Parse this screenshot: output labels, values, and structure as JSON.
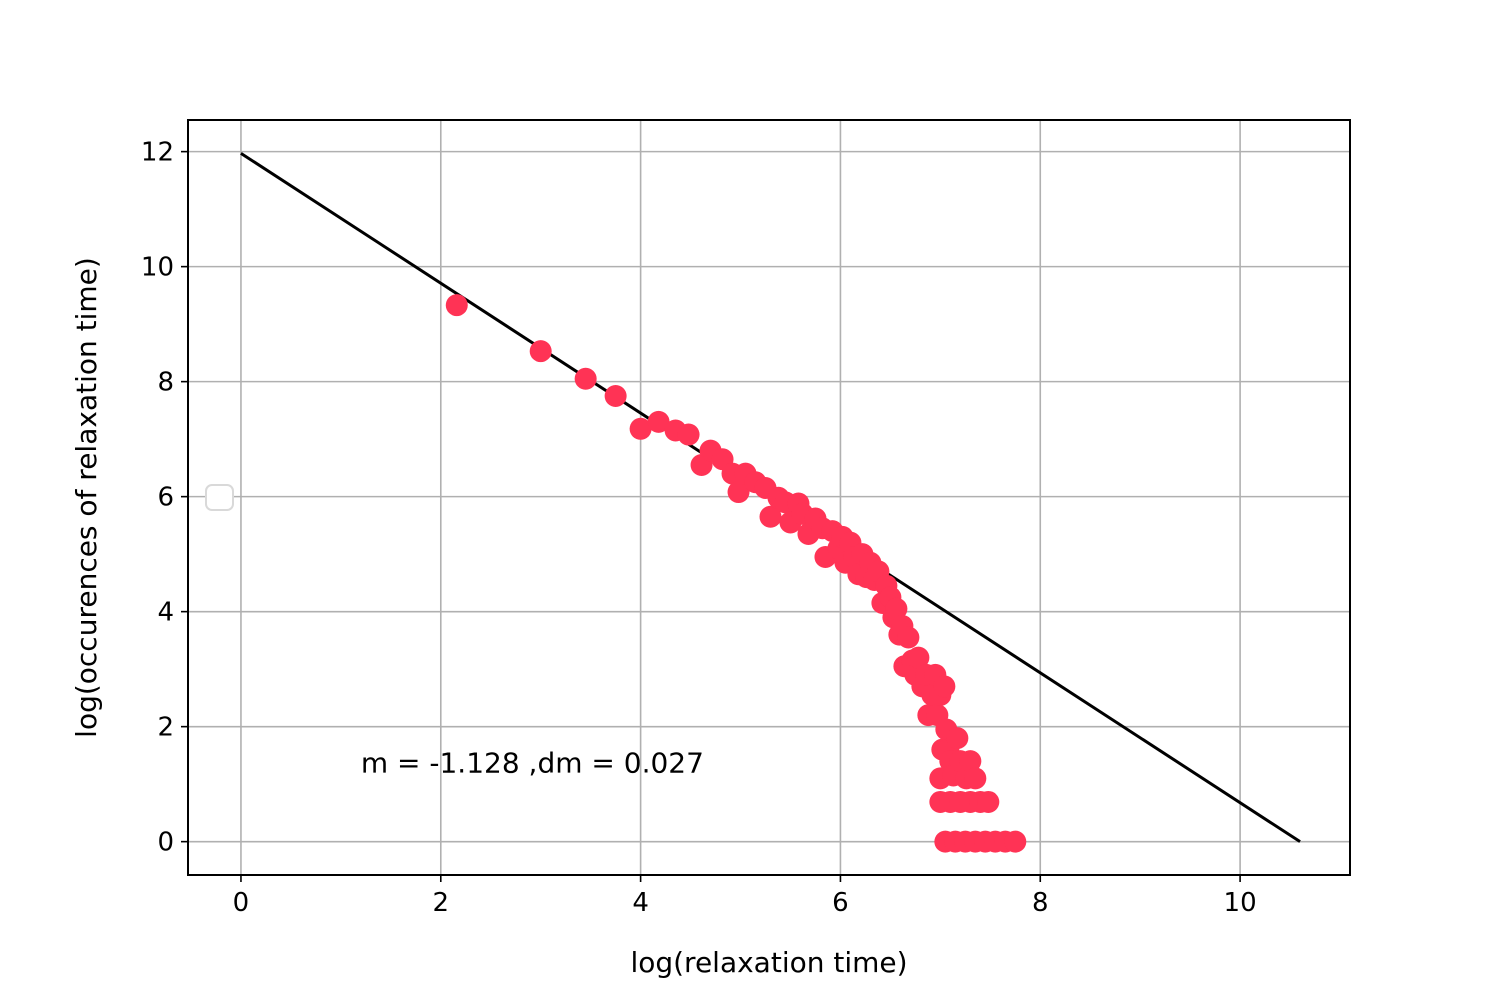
{
  "chart_data": {
    "type": "scatter",
    "title": "",
    "xlabel": "log(relaxation time)",
    "ylabel": "log(occurences of relaxation time)",
    "xlim": [
      -0.53,
      11.1
    ],
    "ylim": [
      -0.58,
      12.55
    ],
    "xticks": [
      0,
      2,
      4,
      6,
      8,
      10
    ],
    "yticks": [
      0,
      2,
      4,
      6,
      8,
      10,
      12
    ],
    "grid": true,
    "legend": "empty marker at center-left",
    "annotation": {
      "text": "m = -1.128 ,dm = 0.027",
      "x": 1.2,
      "y": 1.2
    },
    "colors": {
      "points": "#ff3355",
      "fit_line": "#000000",
      "grid": "#b0b0b0"
    },
    "fit_line": {
      "x": [
        0,
        10.6
      ],
      "y": [
        11.97,
        0
      ]
    },
    "series": [
      {
        "values": [
          [
            2.16,
            9.33
          ],
          [
            3.0,
            8.53
          ],
          [
            3.45,
            8.05
          ],
          [
            3.75,
            7.75
          ],
          [
            4.0,
            7.18
          ],
          [
            4.18,
            7.3
          ],
          [
            4.35,
            7.15
          ],
          [
            4.48,
            7.08
          ],
          [
            4.61,
            6.55
          ],
          [
            4.7,
            6.8
          ],
          [
            4.82,
            6.65
          ],
          [
            4.92,
            6.4
          ],
          [
            4.98,
            6.08
          ],
          [
            5.05,
            6.4
          ],
          [
            5.15,
            6.25
          ],
          [
            5.25,
            6.15
          ],
          [
            5.3,
            5.65
          ],
          [
            5.38,
            5.98
          ],
          [
            5.45,
            5.9
          ],
          [
            5.5,
            5.55
          ],
          [
            5.58,
            5.88
          ],
          [
            5.62,
            5.7
          ],
          [
            5.68,
            5.35
          ],
          [
            5.75,
            5.62
          ],
          [
            5.82,
            5.45
          ],
          [
            5.85,
            4.95
          ],
          [
            5.92,
            5.4
          ],
          [
            5.98,
            5.1
          ],
          [
            6.02,
            5.3
          ],
          [
            6.05,
            4.85
          ],
          [
            6.1,
            5.2
          ],
          [
            6.14,
            4.95
          ],
          [
            6.18,
            4.65
          ],
          [
            6.22,
            5.0
          ],
          [
            6.26,
            4.6
          ],
          [
            6.3,
            4.85
          ],
          [
            6.34,
            4.55
          ],
          [
            6.38,
            4.7
          ],
          [
            6.42,
            4.15
          ],
          [
            6.46,
            4.45
          ],
          [
            6.5,
            4.25
          ],
          [
            6.53,
            3.9
          ],
          [
            6.56,
            4.05
          ],
          [
            6.59,
            3.6
          ],
          [
            6.62,
            3.75
          ],
          [
            6.64,
            3.05
          ],
          [
            6.68,
            3.55
          ],
          [
            6.72,
            3.15
          ],
          [
            6.75,
            2.9
          ],
          [
            6.78,
            3.2
          ],
          [
            6.82,
            2.7
          ],
          [
            6.86,
            2.9
          ],
          [
            6.88,
            2.2
          ],
          [
            6.92,
            2.55
          ],
          [
            6.95,
            2.9
          ],
          [
            6.97,
            2.2
          ],
          [
            7.0,
            2.55
          ],
          [
            7.02,
            1.6
          ],
          [
            7.04,
            2.7
          ],
          [
            7.06,
            1.95
          ],
          [
            7.08,
            1.6
          ],
          [
            7.0,
            1.1
          ],
          [
            7.1,
            1.4
          ],
          [
            7.13,
            1.15
          ],
          [
            7.17,
            1.8
          ],
          [
            7.2,
            1.4
          ],
          [
            7.26,
            1.1
          ],
          [
            7.3,
            1.4
          ],
          [
            7.35,
            1.1
          ],
          [
            7.0,
            0.69
          ],
          [
            7.1,
            0.69
          ],
          [
            7.2,
            0.69
          ],
          [
            7.3,
            0.69
          ],
          [
            7.4,
            0.69
          ],
          [
            7.48,
            0.69
          ],
          [
            7.05,
            0.0
          ],
          [
            7.15,
            0.0
          ],
          [
            7.25,
            0.0
          ],
          [
            7.35,
            0.0
          ],
          [
            7.45,
            0.0
          ],
          [
            7.55,
            0.0
          ],
          [
            7.65,
            0.0
          ],
          [
            7.75,
            0.0
          ]
        ]
      }
    ]
  }
}
